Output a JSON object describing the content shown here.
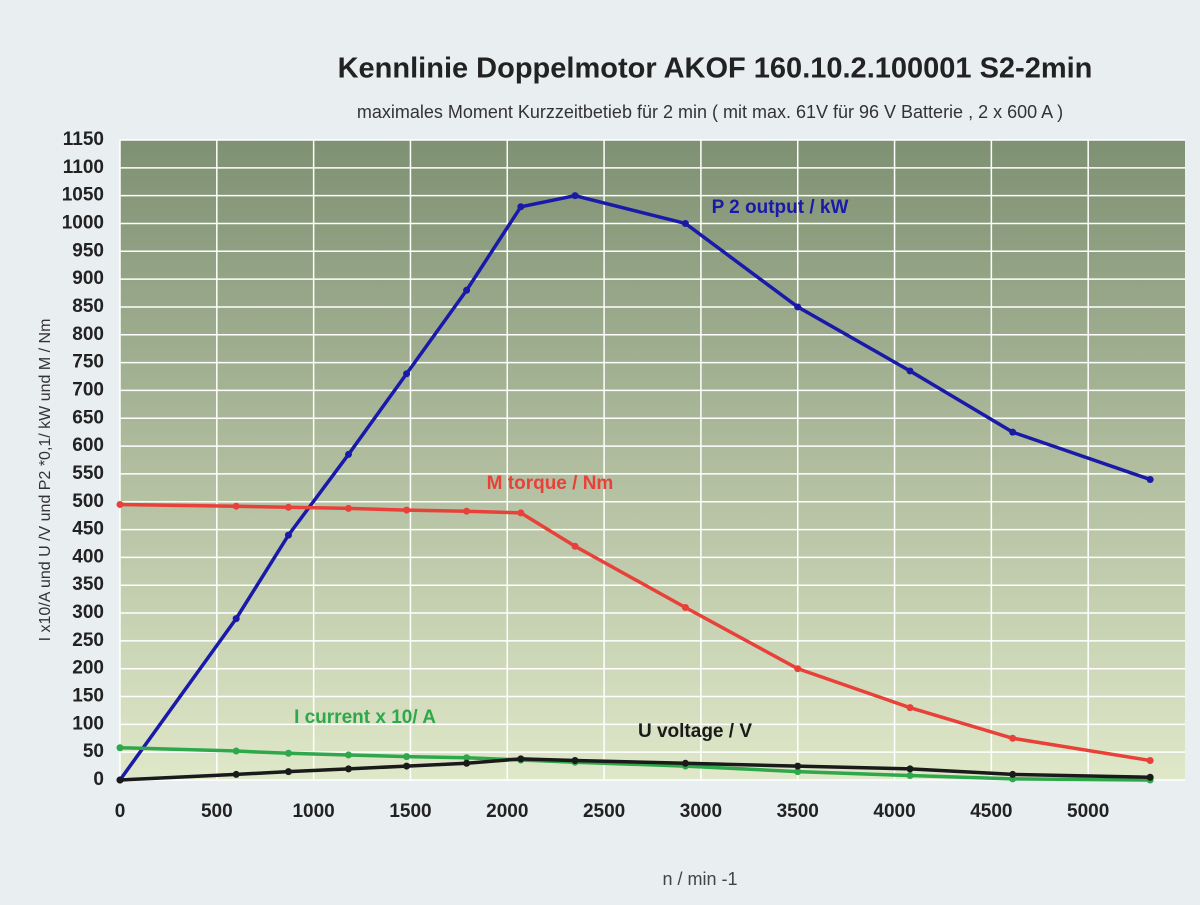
{
  "chart_data": {
    "type": "line",
    "title": "Kennlinie Doppelmotor AKOF 160.10.2.100001  S2-2min",
    "subtitle": "maximales Moment Kurzzeitbetieb  für 2 min ( mit max. 61V für 96 V Batterie , 2 x 600 A )",
    "x_label": "n / min -1",
    "y_label": "I x10/A  und U /V  und  P2 *0,1/ kW und M / Nm",
    "x": [
      0,
      600,
      870,
      1180,
      1480,
      1790,
      2070,
      2350,
      2920,
      3500,
      4080,
      4610,
      5320
    ],
    "series": [
      {
        "name": "P 2 output / kW",
        "color": "#1a1aa8",
        "values": [
          0,
          290,
          440,
          585,
          730,
          880,
          1030,
          1050,
          1000,
          850,
          735,
          625,
          540
        ]
      },
      {
        "name": "M torque / Nm",
        "color": "#e8413a",
        "values": [
          495,
          492,
          490,
          488,
          485,
          483,
          480,
          420,
          310,
          200,
          130,
          75,
          35
        ]
      },
      {
        "name": "I current x 10/ A",
        "color": "#2ea84a",
        "values": [
          58,
          52,
          48,
          45,
          42,
          40,
          36,
          32,
          25,
          15,
          8,
          2,
          0
        ]
      },
      {
        "name": "U voltage / V",
        "color": "#1a1a1a",
        "values": [
          0,
          10,
          15,
          20,
          25,
          30,
          38,
          35,
          30,
          25,
          20,
          10,
          5
        ]
      }
    ],
    "xlim": [
      0,
      5500
    ],
    "xticks": [
      0,
      500,
      1000,
      1500,
      2000,
      2500,
      3000,
      3500,
      4000,
      4500,
      5000
    ],
    "ylim": [
      0,
      1150
    ],
    "yticks": [
      0,
      50,
      100,
      150,
      200,
      250,
      300,
      350,
      400,
      450,
      500,
      550,
      600,
      650,
      700,
      750,
      800,
      850,
      900,
      950,
      1000,
      1050,
      1100,
      1150
    ],
    "grid": true
  }
}
